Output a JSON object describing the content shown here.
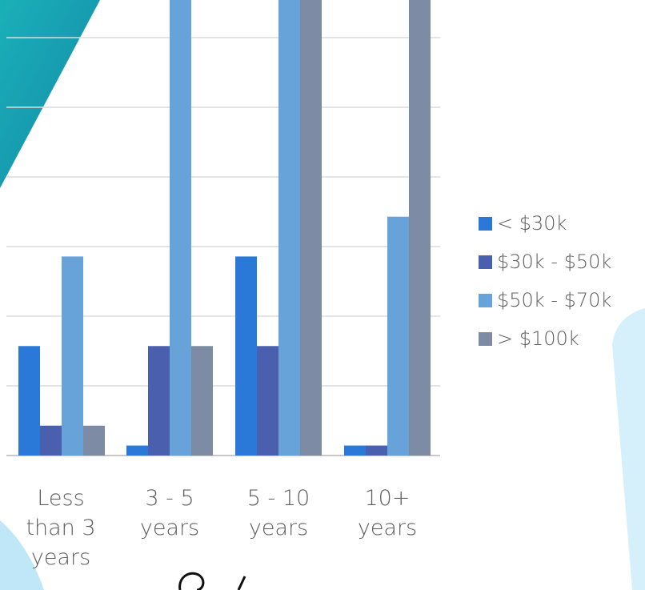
{
  "chart_data": {
    "type": "bar",
    "categories": [
      "Less than 3 years",
      "3 - 5 years",
      "5 - 10 years",
      "10+ years"
    ],
    "category_labels": [
      "Less\nthan 3\nyears",
      "3 - 5\nyears",
      "5 - 10\nyears",
      "10+\nyears"
    ],
    "series": [
      {
        "name": "< $30k",
        "values": [
          11,
          1,
          20,
          1
        ],
        "color": "#2a78d8"
      },
      {
        "name": "$30k - $50k",
        "values": [
          3,
          11,
          11,
          1
        ],
        "color": "#4a5fae"
      },
      {
        "name": "$50k - $70k",
        "values": [
          20,
          47,
          51,
          24
        ],
        "color": "#67a3d8"
      },
      {
        "name": "> $100k",
        "values": [
          3,
          11,
          47,
          55
        ],
        "color": "#7e8ba4"
      }
    ],
    "ylim": [
      0,
      56
    ],
    "grid": true,
    "legend_position": "right"
  }
}
